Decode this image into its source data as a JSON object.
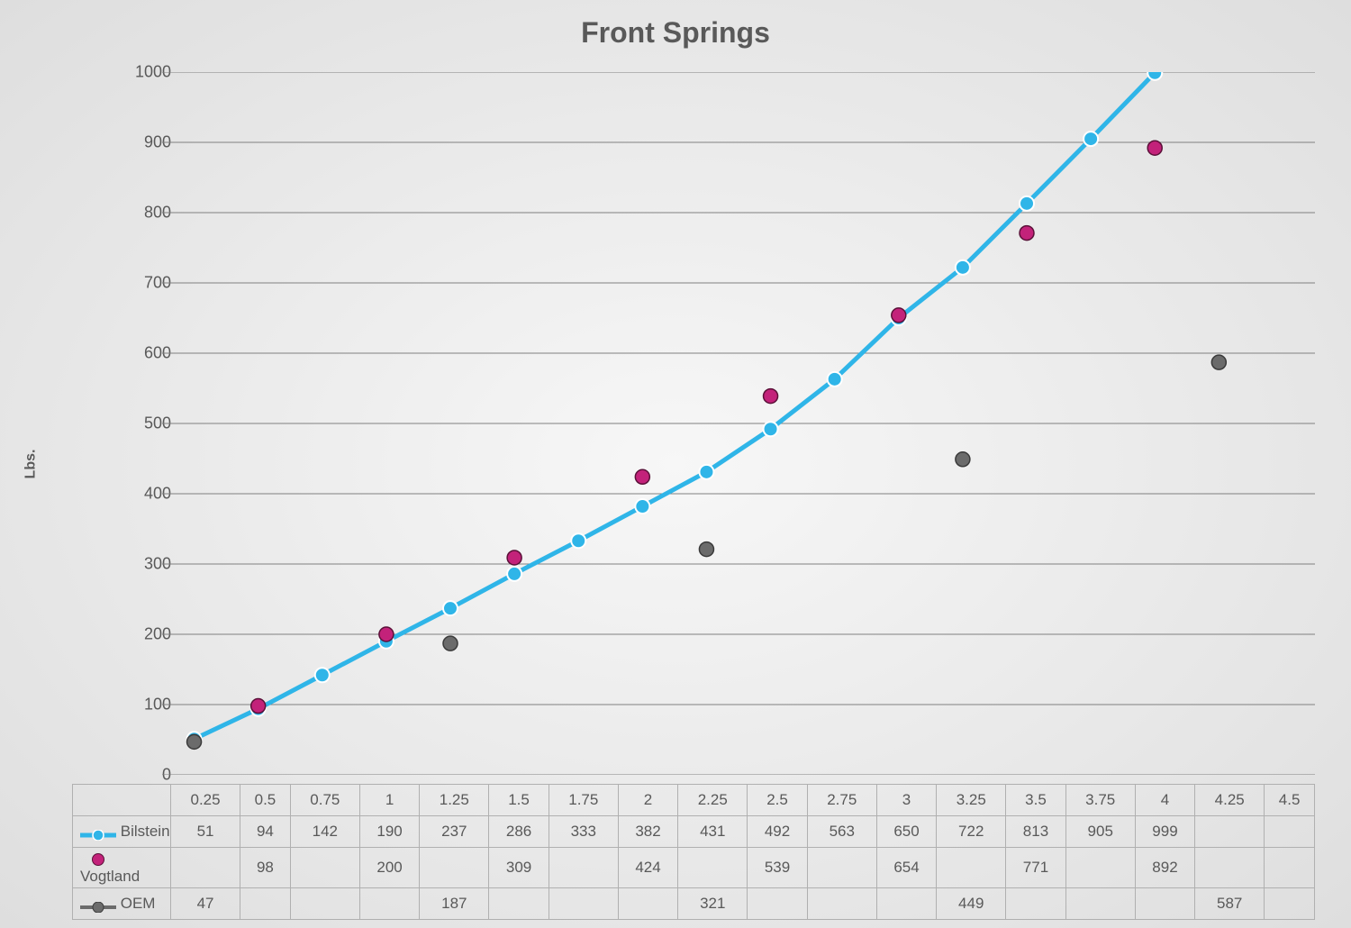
{
  "chart": {
    "type": "line-scatter-with-table",
    "title": "Front Springs",
    "ylabel": "Lbs.",
    "title_fontsize": 32,
    "label_fontsize": 16,
    "tick_fontsize": 18,
    "background_gradient_center": "#f7f7f7",
    "background_gradient_edge": "#dedede",
    "grid_color": "#808080",
    "text_color": "#595959",
    "table_border_color": "#b0b0b0",
    "ylim": [
      0,
      1000
    ],
    "ytick_step": 100,
    "categories": [
      "0.25",
      "0.5",
      "0.75",
      "1",
      "1.25",
      "1.5",
      "1.75",
      "2",
      "2.25",
      "2.5",
      "2.75",
      "3",
      "3.25",
      "3.5",
      "3.75",
      "4",
      "4.25",
      "4.5"
    ],
    "series": [
      {
        "name": "Bilstein",
        "type": "line",
        "color": "#2fb5e8",
        "marker_fill": "#2fb5e8",
        "marker_stroke": "#ffffff",
        "marker_radius": 8,
        "line_width": 5,
        "values": [
          51,
          94,
          142,
          190,
          237,
          286,
          333,
          382,
          431,
          492,
          563,
          650,
          722,
          813,
          905,
          999,
          null,
          null
        ]
      },
      {
        "name": "Vogtland",
        "type": "scatter",
        "color": "#c3227a",
        "marker_fill": "#c3227a",
        "marker_stroke": "#5a1038",
        "marker_radius": 8,
        "line_width": 0,
        "values": [
          null,
          98,
          null,
          200,
          null,
          309,
          null,
          424,
          null,
          539,
          null,
          654,
          null,
          771,
          null,
          892,
          null,
          null
        ]
      },
      {
        "name": "OEM",
        "type": "scatter",
        "color": "#6b6b6b",
        "marker_fill": "#6b6b6b",
        "marker_stroke": "#3a3a3a",
        "marker_radius": 8,
        "line_width": 0,
        "values": [
          47,
          null,
          null,
          null,
          187,
          null,
          null,
          null,
          321,
          null,
          null,
          null,
          449,
          null,
          null,
          null,
          587,
          null
        ]
      }
    ]
  }
}
